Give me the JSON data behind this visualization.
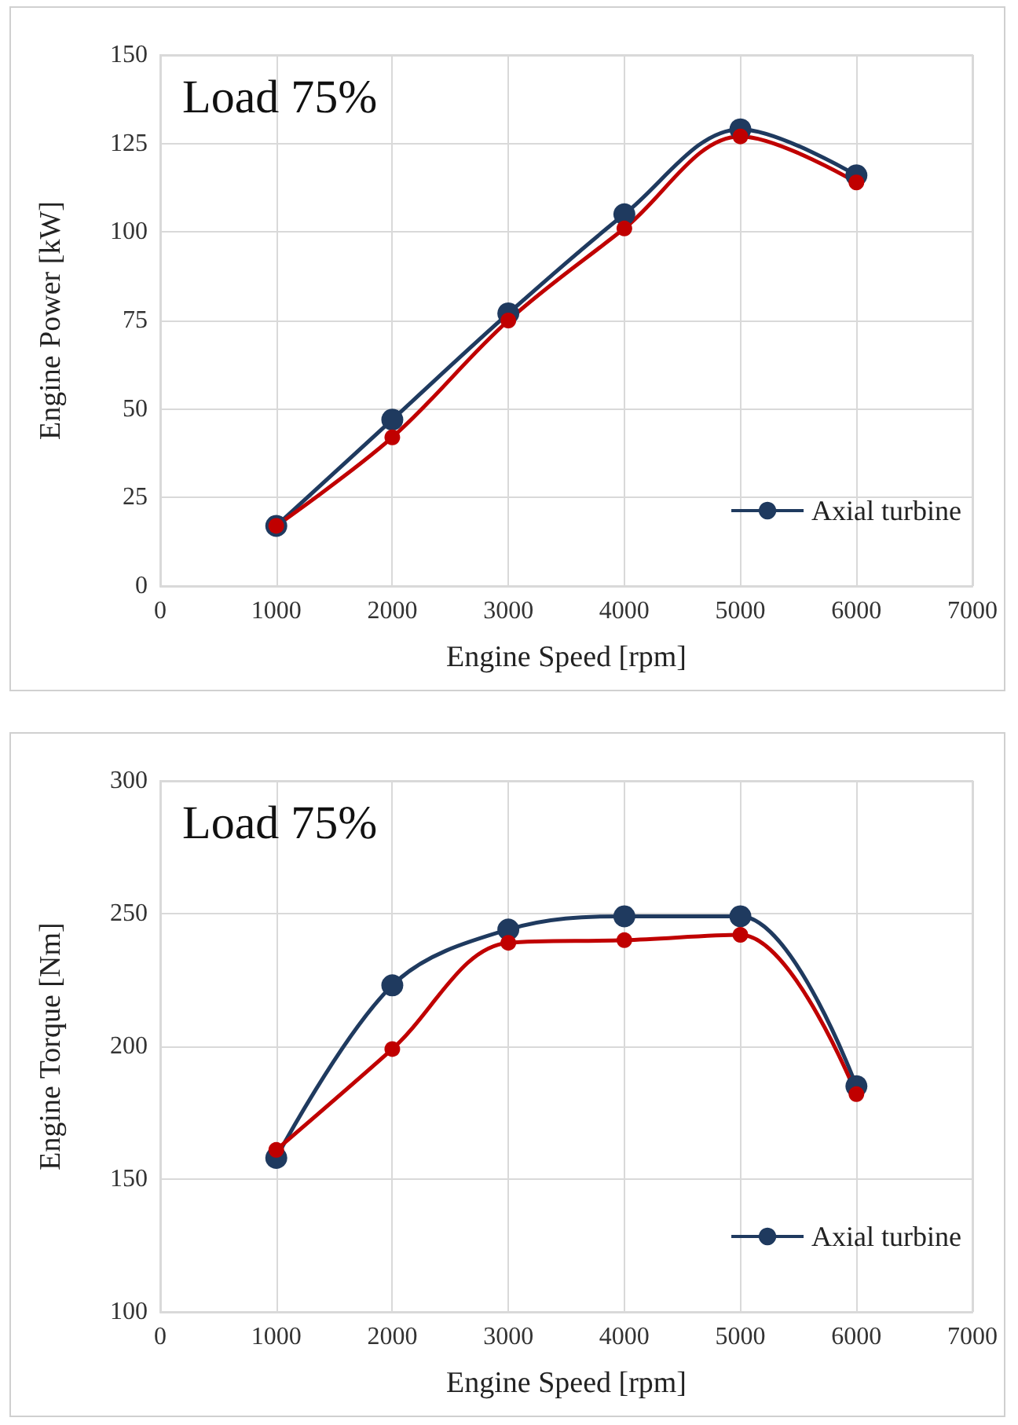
{
  "chart_data": [
    {
      "type": "line",
      "annotations": [
        "Load 75%"
      ],
      "xlabel": "Engine Speed [rpm]",
      "ylabel": "Engine Power [kW]",
      "x": [
        1000,
        2000,
        3000,
        4000,
        5000,
        6000
      ],
      "series": [
        {
          "name": "Axial turbine",
          "color": "#1f3a5f",
          "values": [
            17,
            47,
            77,
            105,
            129,
            116
          ]
        },
        {
          "color": "#c00000",
          "values": [
            17,
            42,
            75,
            101,
            127,
            114
          ]
        }
      ],
      "xlim": [
        0,
        7000
      ],
      "xticks": [
        0,
        1000,
        2000,
        3000,
        4000,
        5000,
        6000,
        7000
      ],
      "ylim": [
        0,
        150
      ],
      "yticks": [
        0,
        25,
        50,
        75,
        100,
        125,
        150
      ],
      "grid": true,
      "legend": "bottom right",
      "marker": "circle",
      "line_style": "solid"
    },
    {
      "type": "line",
      "annotations": [
        "Load 75%"
      ],
      "xlabel": "Engine Speed [rpm]",
      "ylabel": "Engine Torque [Nm]",
      "x": [
        1000,
        2000,
        3000,
        4000,
        5000,
        6000
      ],
      "series": [
        {
          "name": "Axial turbine",
          "color": "#1f3a5f",
          "values": [
            158,
            223,
            244,
            249,
            249,
            185
          ]
        },
        {
          "color": "#c00000",
          "values": [
            161,
            199,
            239,
            240,
            242,
            182
          ]
        }
      ],
      "xlim": [
        0,
        7000
      ],
      "xticks": [
        0,
        1000,
        2000,
        3000,
        4000,
        5000,
        6000,
        7000
      ],
      "ylim": [
        100,
        300
      ],
      "yticks": [
        100,
        150,
        200,
        250,
        300
      ],
      "grid": true,
      "legend": "bottom right",
      "marker": "circle",
      "line_style": "solid"
    }
  ]
}
